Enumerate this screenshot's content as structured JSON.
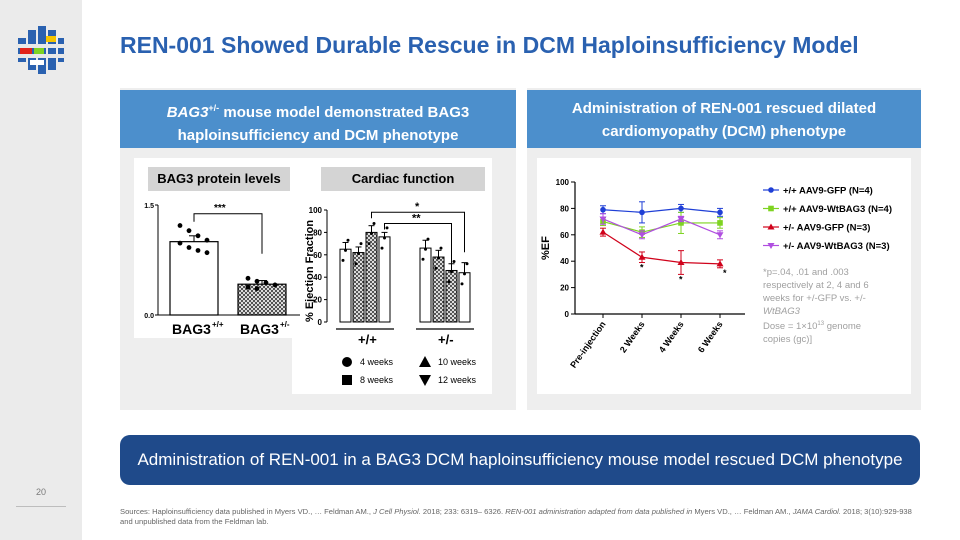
{
  "slide": {
    "title": "REN-001 Showed Durable Rescue in DCM Haploinsufficiency Model",
    "page_number": "20"
  },
  "left_panel": {
    "header_italic": "BAG3",
    "header_sup": "+/-",
    "header_line1_rest": " mouse model demonstrated BAG3",
    "header_line2": "haploinsufficiency and DCM phenotype"
  },
  "right_panel": {
    "header_line1": "Administration of REN-001 rescued dilated",
    "header_line2": "cardiomyopathy (DCM) phenotype"
  },
  "footnote": {
    "line1": "*p=.04, .01 and .003",
    "line2": "respectively at 2, 4 and 6",
    "line3": "weeks for +/-GFP vs. +/-",
    "line4": "WtBAG3",
    "dose_prefix": "Dose = 1×10",
    "dose_exp": "13",
    "dose_suffix": " genome",
    "line6": "copies (gc)]"
  },
  "banner": {
    "text": "Administration of REN-001 in a BAG3 DCM haploinsufficiency mouse model rescued DCM phenotype"
  },
  "sources": {
    "part1": "Sources: Haploinsufficiency data published in Myers VD., … Feldman AM., ",
    "journal1": "J Cell Physiol.",
    "part2": " 2018; 233: 6319– 6326. ",
    "italic2": "REN-001 administration adapted from data published in",
    "part3": " Myers VD., … Feldman AM., ",
    "journal2": "JAMA Cardiol.",
    "part4": " 2018; 3(10):929-938",
    "line2": "and unpublished data from the Feldman lab."
  },
  "colors": {
    "title": "#2a61b0",
    "panel_header": "#4c8fcc",
    "banner": "#1f4a8a",
    "blue_series": "#1f3fd6",
    "green_series": "#7ed321",
    "red_series": "#d0021b",
    "purple_series": "#b04fe0"
  },
  "chart_data": [
    {
      "type": "bar",
      "title": "BAG3 protein levels",
      "categories": [
        "BAG3+/+",
        "BAG3+/-"
      ],
      "category_base": [
        "BAG3",
        "BAG3"
      ],
      "category_sup": [
        "+/+",
        "+/-"
      ],
      "values": [
        1.0,
        0.42
      ],
      "errors": [
        0.08,
        0.05
      ],
      "ylim": [
        0,
        1.5
      ],
      "yticks": [
        "0.0",
        "1.5"
      ],
      "significance": "***",
      "points": [
        [
          1.22,
          1.15,
          1.08,
          1.02,
          0.98,
          0.92,
          0.88,
          0.85
        ],
        [
          0.5,
          0.46,
          0.44,
          0.41,
          0.38,
          0.36
        ]
      ]
    },
    {
      "type": "bar",
      "title": "Cardiac function",
      "ylabel": "% Ejection Fraction",
      "ylim": [
        0,
        100
      ],
      "yticks": [
        "0",
        "20",
        "40",
        "60",
        "80",
        "100"
      ],
      "groups": [
        "+/+",
        "+/-"
      ],
      "timepoints": [
        "4 weeks",
        "8 weeks",
        "10 weeks",
        "12 weeks"
      ],
      "series": [
        {
          "name": "+/+",
          "values": [
            65,
            62,
            80,
            76
          ],
          "errors": [
            6,
            5,
            6,
            4
          ]
        },
        {
          "name": "+/-",
          "values": [
            66,
            58,
            46,
            44
          ],
          "errors": [
            7,
            6,
            6,
            9
          ]
        }
      ],
      "significance": [
        "*",
        "**"
      ]
    },
    {
      "type": "line",
      "xlabel": "",
      "ylabel": "%EF",
      "categories": [
        "Pre-injection",
        "2 Weeks",
        "4 Weeks",
        "6 Weeks"
      ],
      "ylim": [
        0,
        100
      ],
      "yticks": [
        "0",
        "20",
        "40",
        "60",
        "80",
        "100"
      ],
      "series": [
        {
          "name": "+/+ AAV9-GFP (N=4)",
          "values": [
            79,
            77,
            80,
            77
          ],
          "errors": [
            3,
            8,
            3,
            3
          ],
          "color": "#1f3fd6"
        },
        {
          "name": "+/+ AAV9-WtBAG3 (N=4)",
          "values": [
            70,
            62,
            69,
            69
          ],
          "errors": [
            3,
            4,
            8,
            4
          ],
          "color": "#7ed321"
        },
        {
          "name": "+/- AAV9-GFP (N=3)",
          "values": [
            62,
            43,
            39,
            38
          ],
          "errors": [
            3,
            4,
            9,
            3
          ],
          "color": "#d0021b"
        },
        {
          "name": "+/- AAV9-WtBAG3 (N=3)",
          "values": [
            72,
            60,
            72,
            60
          ],
          "errors": [
            4,
            3,
            2,
            3
          ],
          "color": "#b04fe0"
        }
      ],
      "significance_marks": [
        "*",
        "*",
        "*"
      ]
    }
  ]
}
